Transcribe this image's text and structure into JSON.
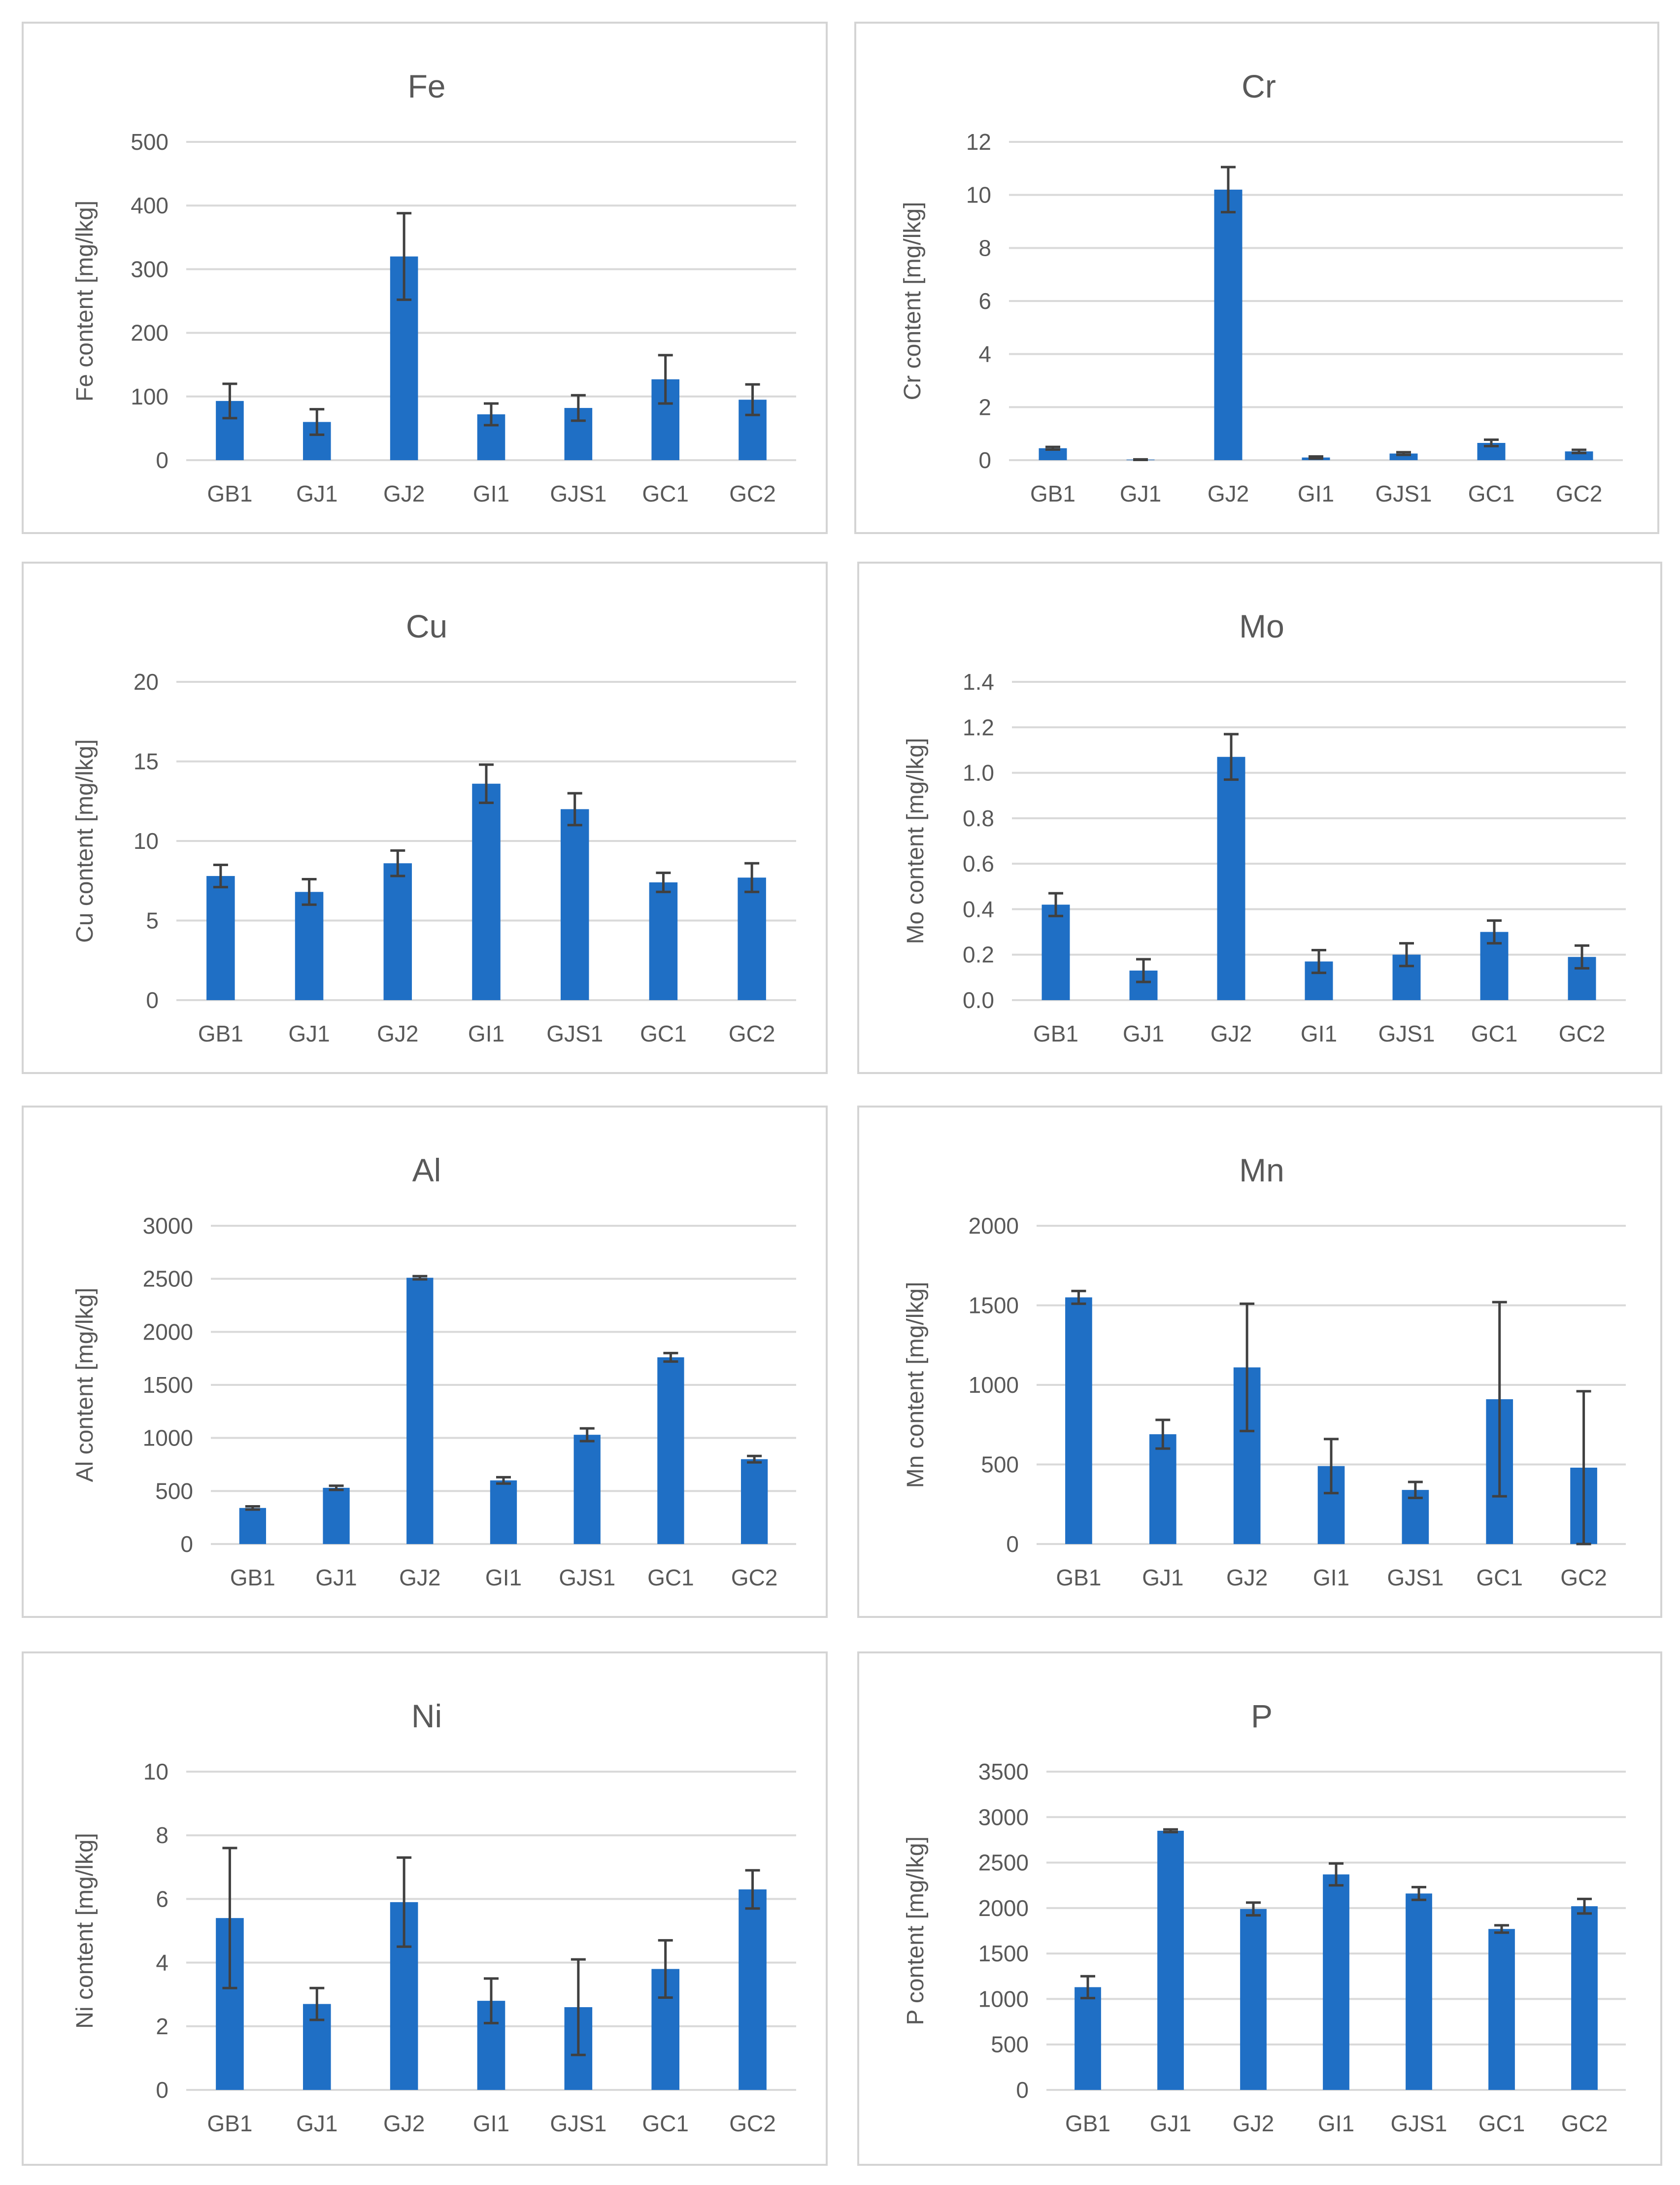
{
  "chart_data": [
    {
      "type": "bar",
      "title": "Fe",
      "ylabel": "Fe content [mg/lkg]",
      "xlabel": "",
      "categories": [
        "GB1",
        "GJ1",
        "GJ2",
        "GI1",
        "GJS1",
        "GC1",
        "GC2"
      ],
      "values": [
        93,
        60,
        320,
        72,
        82,
        127,
        95
      ],
      "errors": [
        27,
        20,
        68,
        17,
        20,
        38,
        24
      ],
      "ylim": [
        0,
        500
      ],
      "yticks": [
        0,
        100,
        200,
        300,
        400,
        500
      ],
      "ytick_labels": [
        "0",
        "100",
        "200",
        "300",
        "400",
        "500"
      ],
      "color": "#1f6fc5",
      "grid": true
    },
    {
      "type": "bar",
      "title": "Cr",
      "ylabel": "Cr content [mg/lkg]",
      "xlabel": "",
      "categories": [
        "GB1",
        "GJ1",
        "GJ2",
        "GI1",
        "GJS1",
        "GC1",
        "GC2"
      ],
      "values": [
        0.45,
        0.02,
        10.2,
        0.1,
        0.25,
        0.65,
        0.33
      ],
      "errors": [
        0.05,
        0.01,
        0.85,
        0.04,
        0.05,
        0.12,
        0.06
      ],
      "ylim": [
        0,
        12
      ],
      "yticks": [
        0,
        2,
        4,
        6,
        8,
        10,
        12
      ],
      "ytick_labels": [
        "0",
        "2",
        "4",
        "6",
        "8",
        "10",
        "12"
      ],
      "color": "#1f6fc5",
      "grid": true
    },
    {
      "type": "bar",
      "title": "Cu",
      "ylabel": "Cu content [mg/lkg]",
      "xlabel": "",
      "categories": [
        "GB1",
        "GJ1",
        "GJ2",
        "GI1",
        "GJS1",
        "GC1",
        "GC2"
      ],
      "values": [
        7.8,
        6.8,
        8.6,
        13.6,
        12.0,
        7.4,
        7.7
      ],
      "errors": [
        0.7,
        0.8,
        0.8,
        1.2,
        1.0,
        0.6,
        0.9
      ],
      "ylim": [
        0,
        20
      ],
      "yticks": [
        0,
        5,
        10,
        15,
        20
      ],
      "ytick_labels": [
        "0",
        "5",
        "10",
        "15",
        "20"
      ],
      "color": "#1f6fc5",
      "grid": true
    },
    {
      "type": "bar",
      "title": "Mo",
      "ylabel": "Mo content [mg/lkg]",
      "xlabel": "",
      "categories": [
        "GB1",
        "GJ1",
        "GJ2",
        "GI1",
        "GJS1",
        "GC1",
        "GC2"
      ],
      "values": [
        0.42,
        0.13,
        1.07,
        0.17,
        0.2,
        0.3,
        0.19
      ],
      "errors": [
        0.05,
        0.05,
        0.1,
        0.05,
        0.05,
        0.05,
        0.05
      ],
      "ylim": [
        0,
        1.4
      ],
      "yticks": [
        0,
        0.2,
        0.4,
        0.6,
        0.8,
        1.0,
        1.2,
        1.4
      ],
      "ytick_labels": [
        "0.0",
        "0.2",
        "0.4",
        "0.6",
        "0.8",
        "1.0",
        "1.2",
        "1.4"
      ],
      "color": "#1f6fc5",
      "grid": true
    },
    {
      "type": "bar",
      "title": "Al",
      "ylabel": "Al content [mg/lkg]",
      "xlabel": "",
      "categories": [
        "GB1",
        "GJ1",
        "GJ2",
        "GI1",
        "GJS1",
        "GC1",
        "GC2"
      ],
      "values": [
        340,
        530,
        2510,
        600,
        1030,
        1760,
        800
      ],
      "errors": [
        15,
        20,
        15,
        30,
        60,
        40,
        30
      ],
      "ylim": [
        0,
        3000
      ],
      "yticks": [
        0,
        500,
        1000,
        1500,
        2000,
        2500,
        3000
      ],
      "ytick_labels": [
        "0",
        "500",
        "1000",
        "1500",
        "2000",
        "2500",
        "3000"
      ],
      "color": "#1f6fc5",
      "grid": true
    },
    {
      "type": "bar",
      "title": "Mn",
      "ylabel": "Mn content [mg/lkg]",
      "xlabel": "",
      "categories": [
        "GB1",
        "GJ1",
        "GJ2",
        "GI1",
        "GJS1",
        "GC1",
        "GC2"
      ],
      "values": [
        1550,
        690,
        1110,
        490,
        340,
        910,
        480
      ],
      "errors": [
        40,
        90,
        400,
        170,
        50,
        610,
        480
      ],
      "ylim": [
        0,
        2000
      ],
      "yticks": [
        0,
        500,
        1000,
        1500,
        2000
      ],
      "ytick_labels": [
        "0",
        "500",
        "1000",
        "1500",
        "2000"
      ],
      "color": "#1f6fc5",
      "grid": true
    },
    {
      "type": "bar",
      "title": "Ni",
      "ylabel": "Ni content [mg/lkg]",
      "xlabel": "",
      "categories": [
        "GB1",
        "GJ1",
        "GJ2",
        "GI1",
        "GJS1",
        "GC1",
        "GC2"
      ],
      "values": [
        5.4,
        2.7,
        5.9,
        2.8,
        2.6,
        3.8,
        6.3
      ],
      "errors": [
        2.2,
        0.5,
        1.4,
        0.7,
        1.5,
        0.9,
        0.6
      ],
      "ylim": [
        0,
        10
      ],
      "yticks": [
        0,
        2,
        4,
        6,
        8,
        10
      ],
      "ytick_labels": [
        "0",
        "2",
        "4",
        "6",
        "8",
        "10"
      ],
      "color": "#1f6fc5",
      "grid": true
    },
    {
      "type": "bar",
      "title": "P",
      "ylabel": "P content [mg/lkg]",
      "xlabel": "",
      "categories": [
        "GB1",
        "GJ1",
        "GJ2",
        "GI1",
        "GJS1",
        "GC1",
        "GC2"
      ],
      "values": [
        1130,
        2850,
        1990,
        2370,
        2160,
        1770,
        2020
      ],
      "errors": [
        120,
        15,
        70,
        120,
        70,
        40,
        80
      ],
      "ylim": [
        0,
        3500
      ],
      "yticks": [
        0,
        500,
        1000,
        1500,
        2000,
        2500,
        3000,
        3500
      ],
      "ytick_labels": [
        "0",
        "500",
        "1000",
        "1500",
        "2000",
        "2500",
        "3000",
        "3500"
      ],
      "color": "#1f6fc5",
      "grid": true
    }
  ]
}
